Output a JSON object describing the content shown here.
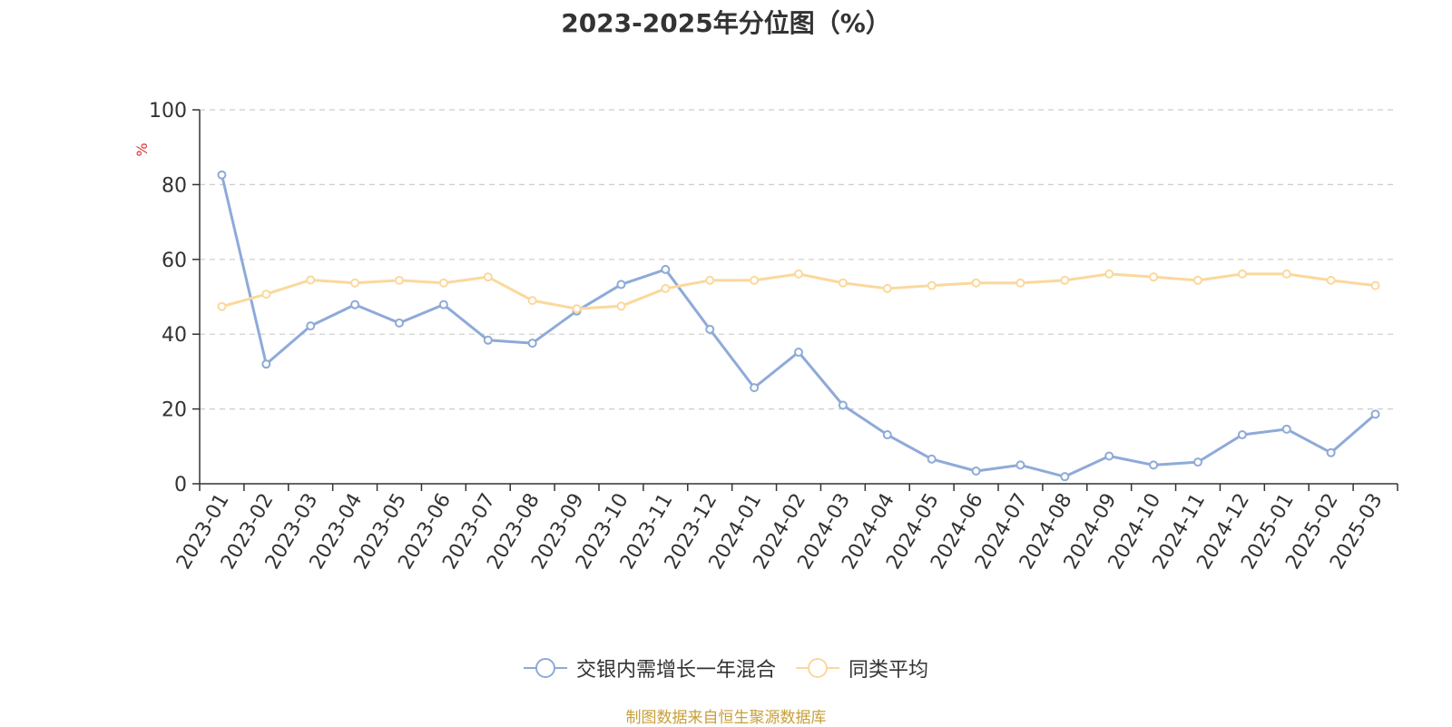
{
  "chart_data": {
    "type": "line",
    "title": "2023-2025年分位图（%）",
    "ylabel": "%",
    "ylim": [
      0,
      100
    ],
    "yticks": [
      0,
      20,
      40,
      60,
      80,
      100
    ],
    "grid": true,
    "legend_position": "bottom",
    "categories": [
      "2023-01",
      "2023-02",
      "2023-03",
      "2023-04",
      "2023-05",
      "2023-06",
      "2023-07",
      "2023-08",
      "2023-09",
      "2023-10",
      "2023-11",
      "2023-12",
      "2024-01",
      "2024-02",
      "2024-03",
      "2024-04",
      "2024-05",
      "2024-06",
      "2024-07",
      "2024-08",
      "2024-09",
      "2024-10",
      "2024-11",
      "2024-12",
      "2025-01",
      "2025-02",
      "2025-03"
    ],
    "series": [
      {
        "name": "交银内需增长一年混合",
        "color": "#8eaad8",
        "values": [
          82.6,
          32.0,
          42.2,
          47.9,
          43.0,
          47.9,
          38.4,
          37.6,
          46.2,
          53.3,
          57.3,
          41.3,
          25.7,
          35.2,
          21.0,
          13.1,
          6.6,
          3.4,
          5.0,
          1.9,
          7.4,
          5.0,
          5.8,
          13.1,
          14.6,
          8.3,
          18.6
        ]
      },
      {
        "name": "同类平均",
        "color": "#fbd89c",
        "values": [
          47.4,
          50.7,
          54.5,
          53.7,
          54.4,
          53.7,
          55.3,
          49.0,
          46.8,
          47.5,
          52.2,
          54.4,
          54.4,
          56.1,
          53.7,
          52.2,
          53.0,
          53.7,
          53.7,
          54.4,
          56.1,
          55.3,
          54.4,
          56.1,
          56.1,
          54.4,
          53.0
        ]
      }
    ]
  },
  "source_text": "制图数据来自恒生聚源数据库"
}
